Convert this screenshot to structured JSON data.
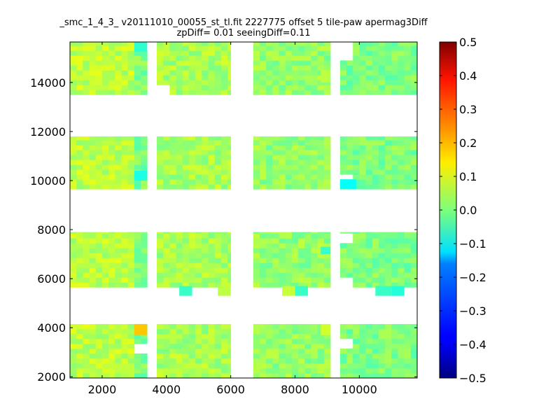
{
  "chart_data": {
    "type": "heatmap",
    "title": "_smc_1_4_3_ v20111010_00055_st_tl.fit 2227775 offset 5 tile-paw apermag3Diff",
    "subtitle": "zpDiff= 0.01 seeingDiff=0.11",
    "xlabel": "",
    "ylabel": "",
    "xlim": [
      1000,
      11800
    ],
    "ylim": [
      1950,
      15650
    ],
    "x_ticks": [
      "2000",
      "4000",
      "6000",
      "8000",
      "10000"
    ],
    "x_tick_values": [
      2000,
      4000,
      6000,
      8000,
      10000
    ],
    "y_ticks": [
      "2000",
      "4000",
      "6000",
      "8000",
      "10000",
      "12000",
      "14000"
    ],
    "y_tick_values": [
      2000,
      4000,
      6000,
      8000,
      10000,
      12000,
      14000
    ],
    "colorbar": {
      "colormap": "jet",
      "vmin": -0.5,
      "vmax": 0.5,
      "ticks": [
        "0.5",
        "0.4",
        "0.3",
        "0.2",
        "0.1",
        "0.0",
        "−0.1",
        "−0.2",
        "−0.3",
        "−0.4",
        "−0.5"
      ],
      "tick_values": [
        0.5,
        0.4,
        0.3,
        0.2,
        0.1,
        0.0,
        -0.1,
        -0.2,
        -0.3,
        -0.4,
        -0.5
      ]
    },
    "grid": false,
    "cell_size": 200,
    "cols": [
      {
        "x": [
          1000,
          3000
        ],
        "base": 0.06
      },
      {
        "x": [
          3000,
          3400
        ],
        "base": 0.0
      },
      {
        "x": [
          3700,
          6000
        ],
        "base": 0.04
      },
      {
        "x": [
          6700,
          9100
        ],
        "base": 0.02
      },
      {
        "x": [
          9400,
          11800
        ],
        "base": 0.0
      }
    ],
    "bands": [
      {
        "y": [
          1950,
          4150
        ]
      },
      {
        "y": [
          5650,
          7900
        ]
      },
      {
        "y": [
          9650,
          11800
        ]
      },
      {
        "y": [
          13500,
          15650
        ]
      }
    ],
    "gaps": [
      {
        "x": [
          3000,
          3400
        ],
        "y": [
          2900,
          3300
        ]
      },
      {
        "x": [
          3000,
          3400
        ],
        "y": [
          15250,
          15650
        ]
      },
      {
        "x": [
          9400,
          9900
        ],
        "y": [
          3200,
          3600
        ]
      },
      {
        "x": [
          9400,
          9900
        ],
        "y": [
          10050,
          10350
        ]
      },
      {
        "x": [
          9400,
          9900
        ],
        "y": [
          14900,
          15650
        ]
      },
      {
        "x": [
          9400,
          9900
        ],
        "y": [
          7450,
          7900
        ]
      },
      {
        "x": [
          9400,
          9900
        ],
        "y": [
          5650,
          6000
        ]
      },
      {
        "x": [
          3700,
          4200
        ],
        "y": [
          13500,
          13900
        ]
      },
      {
        "x": [
          4200,
          4400
        ],
        "y": [
          5650,
          5700
        ]
      },
      {
        "x": [
          4800,
          5600
        ],
        "y": [
          5650,
          5700
        ]
      },
      {
        "x": [
          6700,
          7600
        ],
        "y": [
          5650,
          5700
        ]
      },
      {
        "x": [
          10900,
          11600
        ],
        "y": [
          5650,
          5700
        ]
      }
    ],
    "highlights": [
      {
        "x": [
          3000,
          3400
        ],
        "y": [
          3700,
          4150
        ],
        "value": 0.18
      },
      {
        "x": [
          3000,
          3400
        ],
        "y": [
          15250,
          15650
        ],
        "value": -0.08
      },
      {
        "x": [
          3000,
          3400
        ],
        "y": [
          10000,
          10400
        ],
        "value": -0.1
      },
      {
        "x": [
          9400,
          9900
        ],
        "y": [
          9650,
          10050
        ],
        "value": -0.12
      },
      {
        "x": [
          4400,
          4800
        ],
        "y": [
          5300,
          5700
        ],
        "value": -0.07
      },
      {
        "x": [
          5600,
          6000
        ],
        "y": [
          5300,
          5700
        ],
        "value": 0.06
      },
      {
        "x": [
          7600,
          8000
        ],
        "y": [
          5300,
          5700
        ],
        "value": 0.07
      },
      {
        "x": [
          8000,
          8400
        ],
        "y": [
          5300,
          5700
        ],
        "value": -0.07
      },
      {
        "x": [
          10500,
          11000
        ],
        "y": [
          5300,
          5700
        ],
        "value": -0.07
      },
      {
        "x": [
          11000,
          11400
        ],
        "y": [
          5300,
          5700
        ],
        "value": -0.09
      },
      {
        "x": [
          8800,
          9100
        ],
        "y": [
          3700,
          4150
        ],
        "value": 0.08
      },
      {
        "x": [
          8800,
          9100
        ],
        "y": [
          14000,
          14500
        ],
        "value": 0.06
      },
      {
        "x": [
          8800,
          9100
        ],
        "y": [
          7000,
          7300
        ],
        "value": -0.07
      }
    ]
  }
}
